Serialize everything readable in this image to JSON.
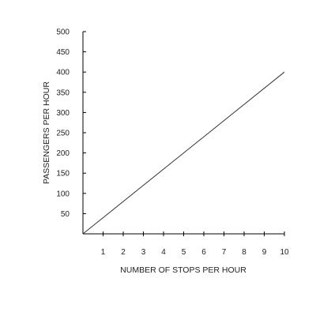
{
  "chart_data": {
    "type": "line",
    "title": "",
    "xlabel": "NUMBER OF STOPS PER HOUR",
    "ylabel": "PASSENGERS PER HOUR",
    "xlim": [
      0,
      10
    ],
    "ylim": [
      0,
      500
    ],
    "x_ticks": [
      1,
      2,
      3,
      4,
      5,
      6,
      7,
      8,
      9,
      10
    ],
    "y_ticks": [
      50,
      100,
      150,
      200,
      250,
      300,
      350,
      400,
      450,
      500
    ],
    "grid": false,
    "series": [
      {
        "x": [
          0,
          10
        ],
        "y": [
          0,
          400
        ]
      }
    ]
  }
}
